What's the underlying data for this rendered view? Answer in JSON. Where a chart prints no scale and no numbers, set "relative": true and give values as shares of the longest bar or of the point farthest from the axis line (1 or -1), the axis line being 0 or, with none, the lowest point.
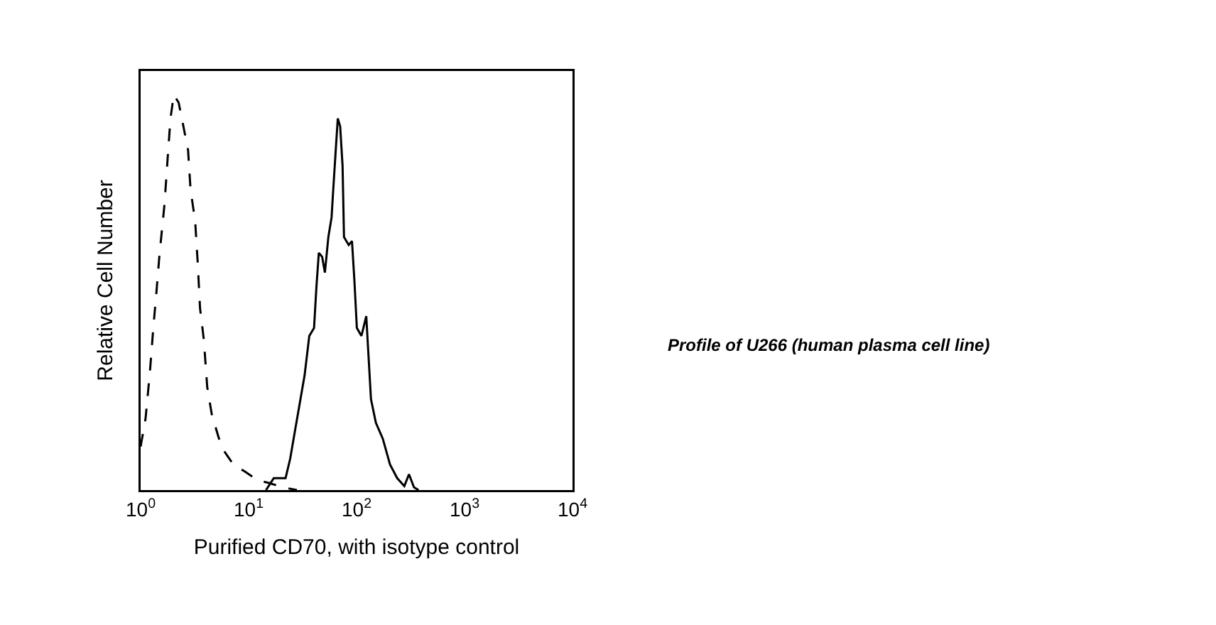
{
  "chart_data": {
    "type": "line",
    "relative": true,
    "log": "x",
    "grid": false,
    "marker": "none",
    "xlabel": "Purified CD70, with isotype control",
    "ylabel": "Relative Cell Number",
    "xlim": [
      1,
      10000
    ],
    "xticks": [
      {
        "value": 1,
        "label": "10$^{0}$"
      },
      {
        "value": 10,
        "label": "10$^{1}$"
      },
      {
        "value": 100,
        "label": "10$^{2}$"
      },
      {
        "value": 1000,
        "label": "10$^{3}$"
      },
      {
        "value": 10000,
        "label": "10$^{4}$"
      }
    ],
    "series": [
      {
        "color": "#000000",
        "line_style": "dashed",
        "x": [
          1.0,
          1.11,
          1.22,
          1.31,
          1.4,
          1.5,
          1.66,
          1.78,
          1.89,
          2.03,
          2.25,
          2.49,
          2.75,
          2.9,
          3.2,
          3.37,
          3.55,
          3.85,
          4.14,
          4.57,
          5.32,
          5.89,
          7.2,
          9.2,
          12.1,
          15.4,
          20.9,
          28
        ],
        "values": [
          0.11,
          0.18,
          0.3,
          0.41,
          0.5,
          0.6,
          0.72,
          0.84,
          0.94,
          1.0,
          0.98,
          0.92,
          0.86,
          0.76,
          0.68,
          0.58,
          0.46,
          0.38,
          0.26,
          0.19,
          0.13,
          0.1,
          0.065,
          0.047,
          0.025,
          0.018,
          0.007,
          0
        ]
      },
      {
        "color": "#000000",
        "line_style": "solid",
        "x": [
          14.5,
          17.1,
          22,
          24.3,
          26.9,
          29.8,
          33,
          36.5,
          40.4,
          42.4,
          44.7,
          48,
          50.9,
          54.8,
          58.7,
          60.5,
          63.8,
          67,
          70.5,
          74.2,
          76.5,
          84.6,
          90.7,
          95.5,
          100.6,
          111,
          123,
          129,
          136,
          151,
          175,
          204,
          238,
          277,
          306,
          340,
          375
        ],
        "values": [
          0,
          0.03,
          0.03,
          0.08,
          0.15,
          0.22,
          0.29,
          0.39,
          0.41,
          0.51,
          0.6,
          0.59,
          0.55,
          0.64,
          0.69,
          0.75,
          0.85,
          0.94,
          0.92,
          0.82,
          0.64,
          0.62,
          0.63,
          0.53,
          0.41,
          0.39,
          0.44,
          0.34,
          0.23,
          0.17,
          0.13,
          0.065,
          0.03,
          0.01,
          0.04,
          0.007,
          0
        ]
      }
    ],
    "annotations": [
      "Profile of U266 (human plasma cell line)"
    ]
  }
}
